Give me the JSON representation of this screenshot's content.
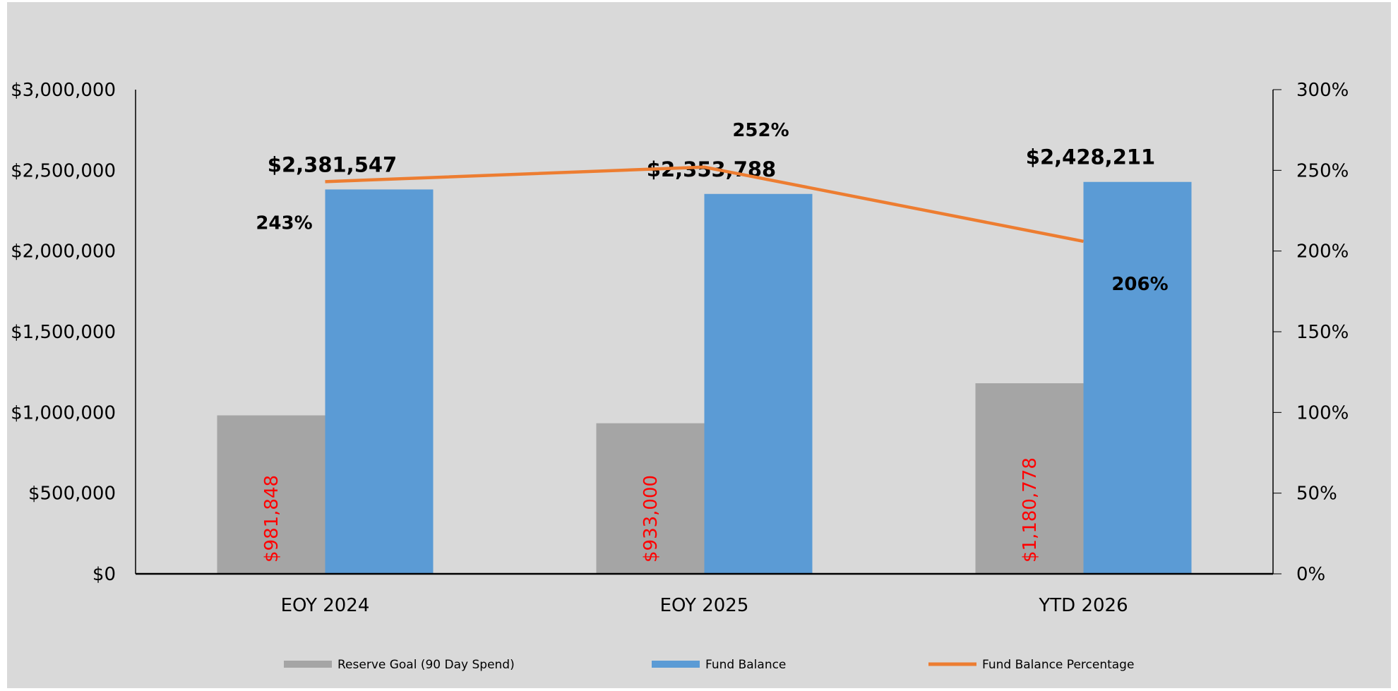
{
  "chart_data": {
    "type": "bar",
    "title": "",
    "categories": [
      "EOY 2024",
      "EOY 2025",
      "YTD 2026"
    ],
    "y_left": {
      "range": [
        0,
        3000000
      ],
      "ticks": [
        0,
        500000,
        1000000,
        1500000,
        2000000,
        2500000,
        3000000
      ],
      "tick_labels": [
        "$0",
        "$500,000",
        "$1,000,000",
        "$1,500,000",
        "$2,000,000",
        "$2,500,000",
        "$3,000,000"
      ]
    },
    "y_right": {
      "range": [
        0,
        3
      ],
      "ticks": [
        0,
        0.5,
        1,
        1.5,
        2,
        2.5,
        3
      ],
      "tick_labels": [
        "0%",
        "50%",
        "100%",
        "150%",
        "200%",
        "250%",
        "300%"
      ]
    },
    "grid": false,
    "legend_position": "bottom",
    "series": [
      {
        "name": "Reserve Goal (90 Day Spend)",
        "kind": "bar",
        "axis": "left",
        "color": "#a5a5a5",
        "label_color": "#ff0000",
        "values": [
          981848,
          933000,
          1180778
        ],
        "labels": [
          "$981,848",
          "$933,000",
          "$1,180,778"
        ]
      },
      {
        "name": "Fund Balance",
        "kind": "bar",
        "axis": "left",
        "color": "#5b9bd5",
        "label_color": "#000000",
        "values": [
          2381547,
          2353788,
          2428211
        ],
        "labels": [
          "$2,381,547",
          "$2,353,788",
          "$2,428,211"
        ]
      },
      {
        "name": "Fund Balance Percentage",
        "kind": "line",
        "axis": "right",
        "color": "#ed7d31",
        "label_color": "#000000",
        "values": [
          2.43,
          2.52,
          2.06
        ],
        "labels": [
          "243%",
          "252%",
          "206%"
        ]
      }
    ]
  },
  "colors": {
    "background": "#d9d9d9",
    "axis": "#000000",
    "tick_text": "#000000"
  }
}
